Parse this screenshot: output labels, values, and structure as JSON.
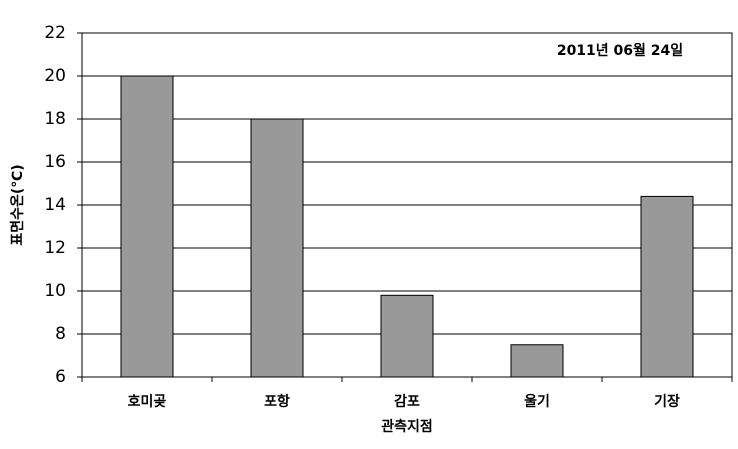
{
  "chart_data": {
    "type": "bar",
    "annotation": "2011년 06월 24일",
    "x_label": "관측지점",
    "y_label": "표면수온(℃)",
    "categories": [
      "호미곶",
      "포항",
      "감포",
      "울기",
      "기장"
    ],
    "values": [
      20,
      18,
      9.8,
      7.5,
      14.4
    ],
    "color": "#999999",
    "ylim": [
      6,
      22
    ],
    "yticks": [
      6,
      8,
      10,
      12,
      14,
      16,
      18,
      20,
      22
    ],
    "grid": true
  }
}
